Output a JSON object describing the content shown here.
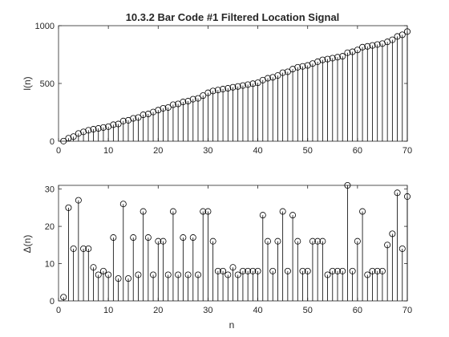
{
  "chart_data": [
    {
      "type": "stem",
      "title": "10.3.2 Bar Code #1 Filtered Location Signal",
      "xlabel": "",
      "ylabel": "l(n)",
      "xlim": [
        0,
        70
      ],
      "ylim": [
        0,
        1000
      ],
      "xticks": [
        "0",
        "10",
        "20",
        "30",
        "40",
        "50",
        "60",
        "70"
      ],
      "yticks": [
        "0",
        "500",
        "1000"
      ],
      "ytick_values": [
        0,
        500,
        1000
      ],
      "marker": "circle",
      "color": "#000000",
      "x": [
        1,
        2,
        3,
        4,
        5,
        6,
        7,
        8,
        9,
        10,
        11,
        12,
        13,
        14,
        15,
        16,
        17,
        18,
        19,
        20,
        21,
        22,
        23,
        24,
        25,
        26,
        27,
        28,
        29,
        30,
        31,
        32,
        33,
        34,
        35,
        36,
        37,
        38,
        39,
        40,
        41,
        42,
        43,
        44,
        45,
        46,
        47,
        48,
        49,
        50,
        51,
        52,
        53,
        54,
        55,
        56,
        57,
        58,
        59,
        60,
        61,
        62,
        63,
        64,
        65,
        66,
        67,
        68,
        69,
        70
      ],
      "values": [
        1,
        26,
        40,
        67,
        81,
        95,
        104,
        111,
        119,
        126,
        143,
        149,
        175,
        181,
        198,
        205,
        229,
        236,
        253,
        269,
        285,
        292,
        316,
        323,
        340,
        347,
        364,
        371,
        395,
        419,
        435,
        443,
        451,
        458,
        467,
        474,
        482,
        490,
        498,
        506,
        529,
        545,
        553,
        569,
        593,
        601,
        624,
        640,
        648,
        656,
        672,
        688,
        704,
        711,
        719,
        727,
        735,
        766,
        774,
        790,
        814,
        821,
        829,
        837,
        845,
        860,
        878,
        907,
        921,
        949
      ]
    },
    {
      "type": "stem",
      "title": "",
      "xlabel": "n",
      "ylabel": "Δ(n)",
      "xlim": [
        0,
        70
      ],
      "ylim": [
        0,
        31
      ],
      "xticks": [
        "0",
        "10",
        "20",
        "30",
        "40",
        "50",
        "60",
        "70"
      ],
      "yticks": [
        "0",
        "10",
        "20",
        "30"
      ],
      "ytick_values": [
        0,
        10,
        20,
        30
      ],
      "marker": "circle",
      "color": "#000000",
      "x": [
        1,
        2,
        3,
        4,
        5,
        6,
        7,
        8,
        9,
        10,
        11,
        12,
        13,
        14,
        15,
        16,
        17,
        18,
        19,
        20,
        21,
        22,
        23,
        24,
        25,
        26,
        27,
        28,
        29,
        30,
        31,
        32,
        33,
        34,
        35,
        36,
        37,
        38,
        39,
        40,
        41,
        42,
        43,
        44,
        45,
        46,
        47,
        48,
        49,
        50,
        51,
        52,
        53,
        54,
        55,
        56,
        57,
        58,
        59,
        60,
        61,
        62,
        63,
        64,
        65,
        66,
        67,
        68,
        69,
        70
      ],
      "values": [
        1,
        25,
        14,
        27,
        14,
        14,
        9,
        7,
        8,
        7,
        17,
        6,
        26,
        6,
        17,
        7,
        24,
        17,
        7,
        16,
        16,
        7,
        24,
        7,
        17,
        7,
        17,
        7,
        24,
        24,
        16,
        8,
        8,
        7,
        9,
        7,
        8,
        8,
        8,
        8,
        23,
        16,
        8,
        16,
        24,
        8,
        23,
        16,
        8,
        8,
        16,
        16,
        16,
        7,
        8,
        8,
        8,
        31,
        8,
        16,
        24,
        7,
        8,
        8,
        8,
        15,
        18,
        29,
        14,
        28
      ]
    }
  ]
}
